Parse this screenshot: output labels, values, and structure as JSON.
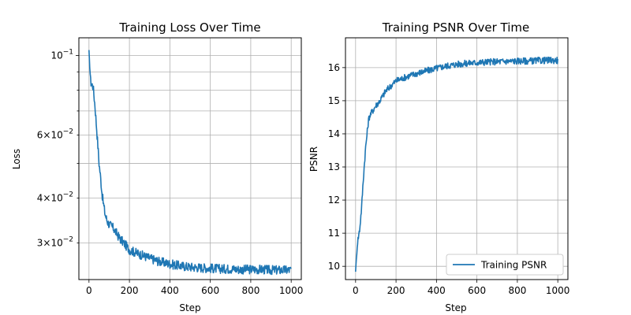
{
  "chart_data": [
    {
      "type": "line",
      "title": "Training Loss Over Time",
      "xlabel": "Step",
      "ylabel": "Loss",
      "yscale": "log",
      "grid": true,
      "xlim": [
        -50,
        1050
      ],
      "ylim": [
        0.0237,
        0.112
      ],
      "xticks": [
        0,
        200,
        400,
        600,
        800,
        1000
      ],
      "xtick_labels": [
        "0",
        "200",
        "400",
        "600",
        "800",
        "1000"
      ],
      "yticks_major": [
        0.1
      ],
      "ytick_labels_major": [
        "10^-1"
      ],
      "yticks_minor": [
        0.03,
        0.04,
        0.05,
        0.06,
        0.07,
        0.08,
        0.09
      ],
      "ytick_labels_minor": {
        "0.03": "3×10^-2",
        "0.04": "4×10^-2",
        "0.06": "6×10^-2"
      },
      "series": [
        {
          "name": "Training Loss",
          "color": "#1f77b4",
          "x": [
            0,
            5,
            10,
            20,
            30,
            40,
            50,
            55,
            60,
            65,
            70,
            80,
            90,
            100,
            120,
            150,
            200,
            250,
            300,
            350,
            400,
            450,
            500,
            550,
            600,
            650,
            700,
            750,
            800,
            850,
            900,
            950,
            1000
          ],
          "values": [
            0.103,
            0.09,
            0.084,
            0.082,
            0.072,
            0.06,
            0.05,
            0.047,
            0.044,
            0.041,
            0.039,
            0.036,
            0.0345,
            0.0338,
            0.033,
            0.031,
            0.0287,
            0.0279,
            0.0272,
            0.0266,
            0.0262,
            0.0259,
            0.0257,
            0.0256,
            0.0255,
            0.0254,
            0.0254,
            0.0253,
            0.0253,
            0.0253,
            0.0252,
            0.0252,
            0.0252
          ],
          "noise": 0.03
        }
      ]
    },
    {
      "type": "line",
      "title": "Training PSNR Over Time",
      "xlabel": "Step",
      "ylabel": "PSNR",
      "yscale": "linear",
      "grid": true,
      "xlim": [
        -50,
        1050
      ],
      "ylim": [
        9.6,
        16.9
      ],
      "xticks": [
        0,
        200,
        400,
        600,
        800,
        1000
      ],
      "xtick_labels": [
        "0",
        "200",
        "400",
        "600",
        "800",
        "1000"
      ],
      "yticks": [
        10,
        11,
        12,
        13,
        14,
        15,
        16
      ],
      "ytick_labels": [
        "10",
        "11",
        "12",
        "13",
        "14",
        "15",
        "16"
      ],
      "legend": {
        "position": "lower-right",
        "entries": [
          "Training PSNR"
        ]
      },
      "series": [
        {
          "name": "Training PSNR",
          "color": "#1f77b4",
          "x": [
            0,
            5,
            10,
            20,
            30,
            40,
            50,
            55,
            60,
            65,
            70,
            80,
            90,
            100,
            120,
            150,
            200,
            250,
            300,
            350,
            400,
            450,
            500,
            550,
            600,
            650,
            700,
            750,
            800,
            850,
            900,
            950,
            1000
          ],
          "values": [
            9.85,
            10.3,
            10.75,
            11.1,
            11.8,
            12.8,
            13.6,
            13.9,
            14.2,
            14.45,
            14.55,
            14.65,
            14.75,
            14.85,
            15.0,
            15.3,
            15.6,
            15.72,
            15.82,
            15.9,
            15.98,
            16.05,
            16.1,
            16.13,
            16.15,
            16.17,
            16.18,
            16.19,
            16.2,
            16.2,
            16.21,
            16.22,
            16.22
          ],
          "noise": 0.1
        }
      ]
    }
  ]
}
